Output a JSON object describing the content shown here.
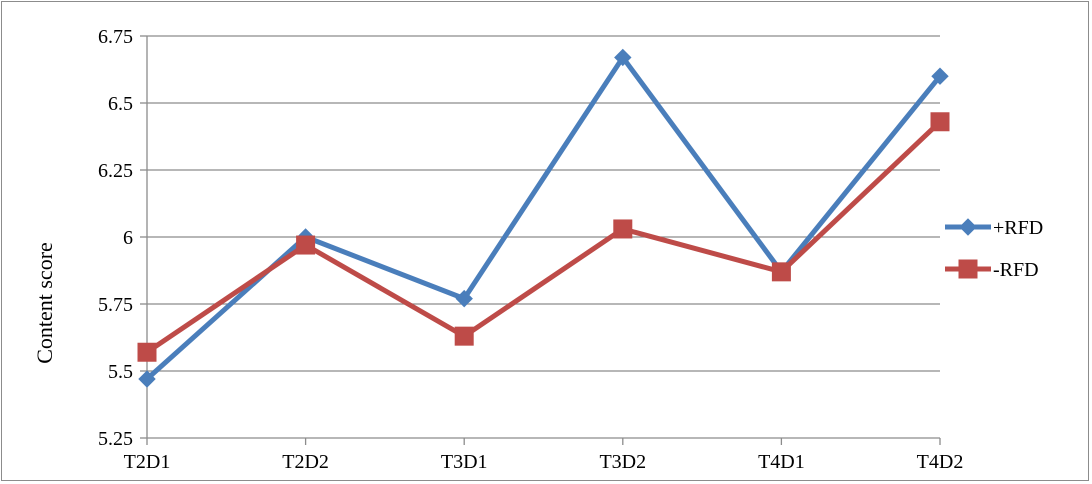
{
  "chart_data": {
    "type": "line",
    "title": "",
    "xlabel": "",
    "ylabel": "Content score",
    "categories": [
      "T2D1",
      "T2D2",
      "T3D1",
      "T3D2",
      "T4D1",
      "T4D2"
    ],
    "ylim": [
      5.25,
      6.75
    ],
    "yticks": [
      "5.25",
      "5.5",
      "5.75",
      "6",
      "6.25",
      "6.5",
      "6.75"
    ],
    "grid": true,
    "legend_position": "right",
    "series": [
      {
        "name": "+RFD",
        "color": "#4a7ebb",
        "marker": "diamond",
        "values": [
          5.47,
          6.0,
          5.77,
          6.67,
          5.87,
          6.6
        ]
      },
      {
        "name": "-RFD",
        "color": "#be4b48",
        "marker": "square",
        "values": [
          5.57,
          5.97,
          5.63,
          6.03,
          5.87,
          6.43
        ]
      }
    ]
  }
}
